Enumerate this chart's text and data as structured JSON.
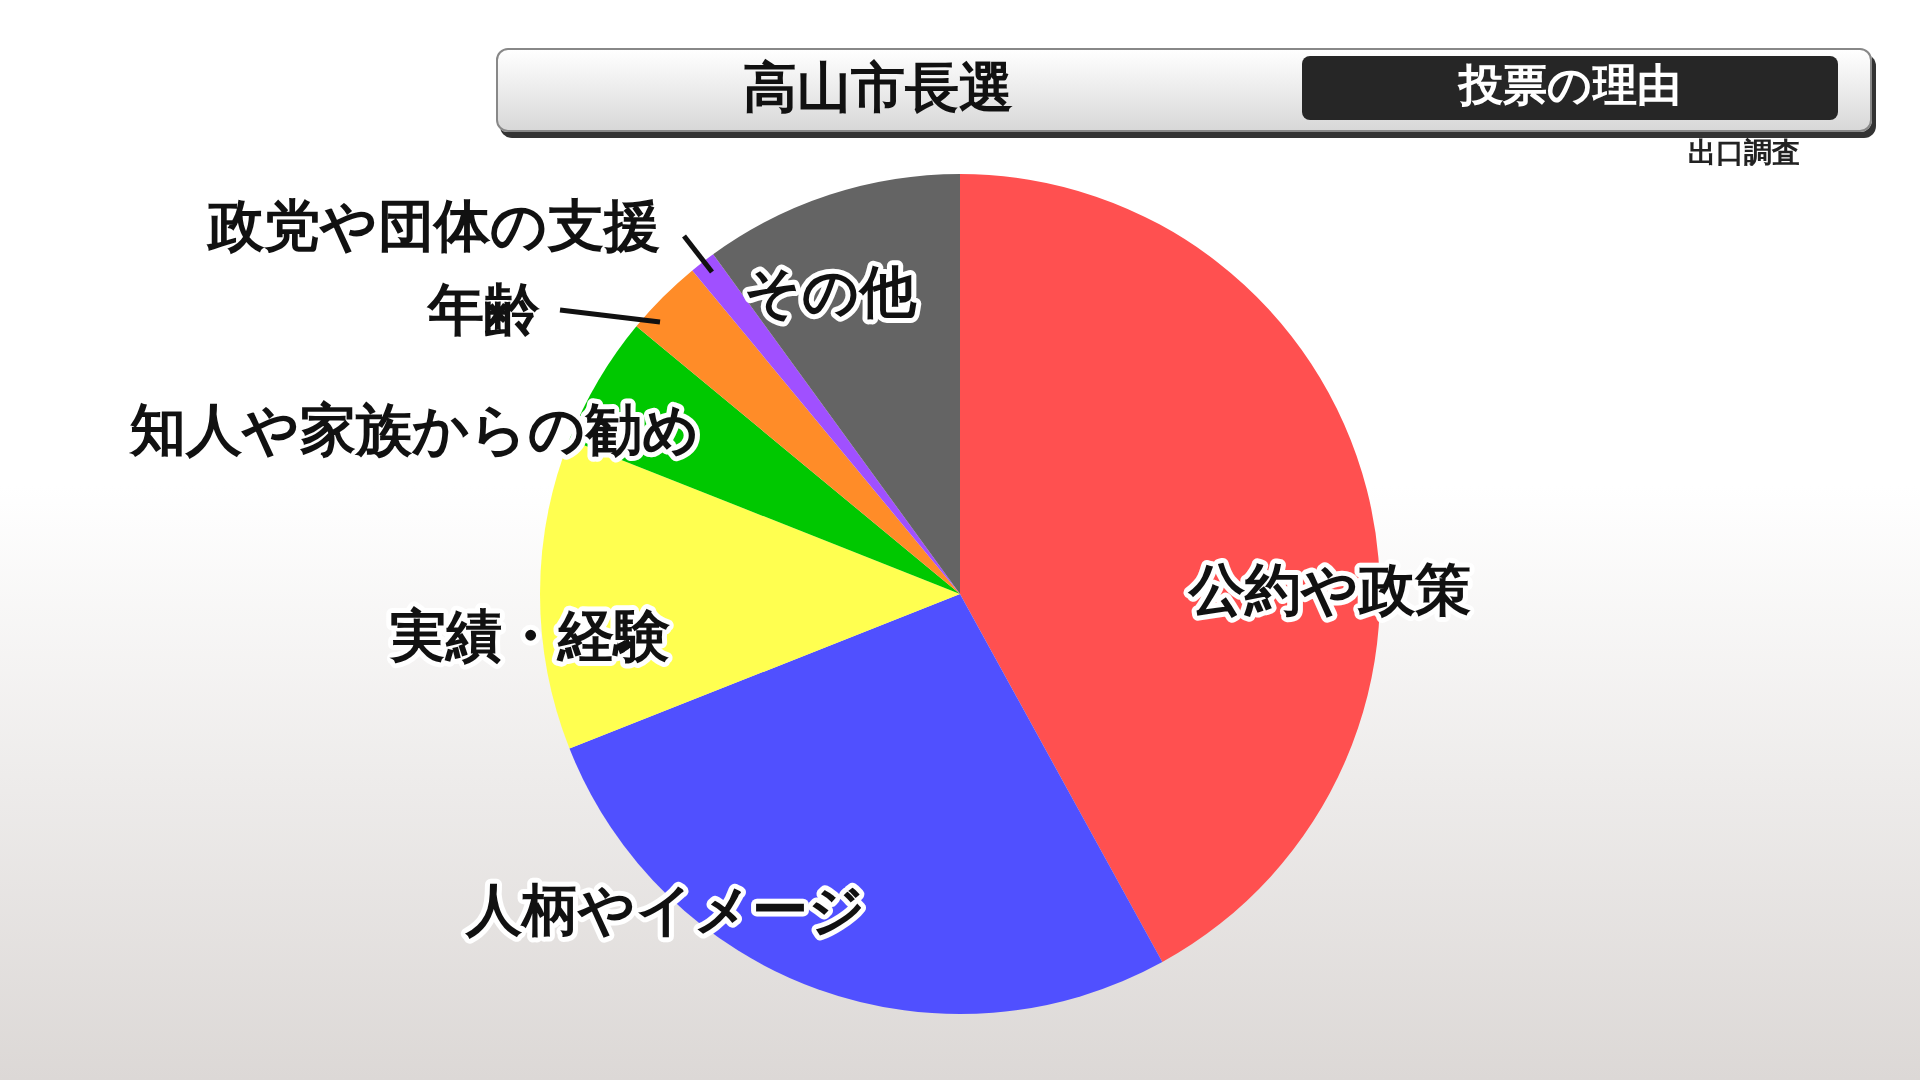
{
  "chart_data": {
    "type": "pie",
    "title": "高山市長選",
    "subtitle": "投票の理由",
    "annotations": [
      "出口調査"
    ],
    "categories": [
      "公約や政策",
      "人柄やイメージ",
      "実績・経験",
      "知人や家族からの勧め",
      "年齢",
      "政党や団体の支援",
      "その他"
    ],
    "values": [
      42,
      27,
      12,
      5,
      3,
      1,
      10
    ],
    "colors": [
      "#ff5050",
      "#5050ff",
      "#ffff50",
      "#00c800",
      "#ff8c28",
      "#a050ff",
      "#646464"
    ]
  }
}
